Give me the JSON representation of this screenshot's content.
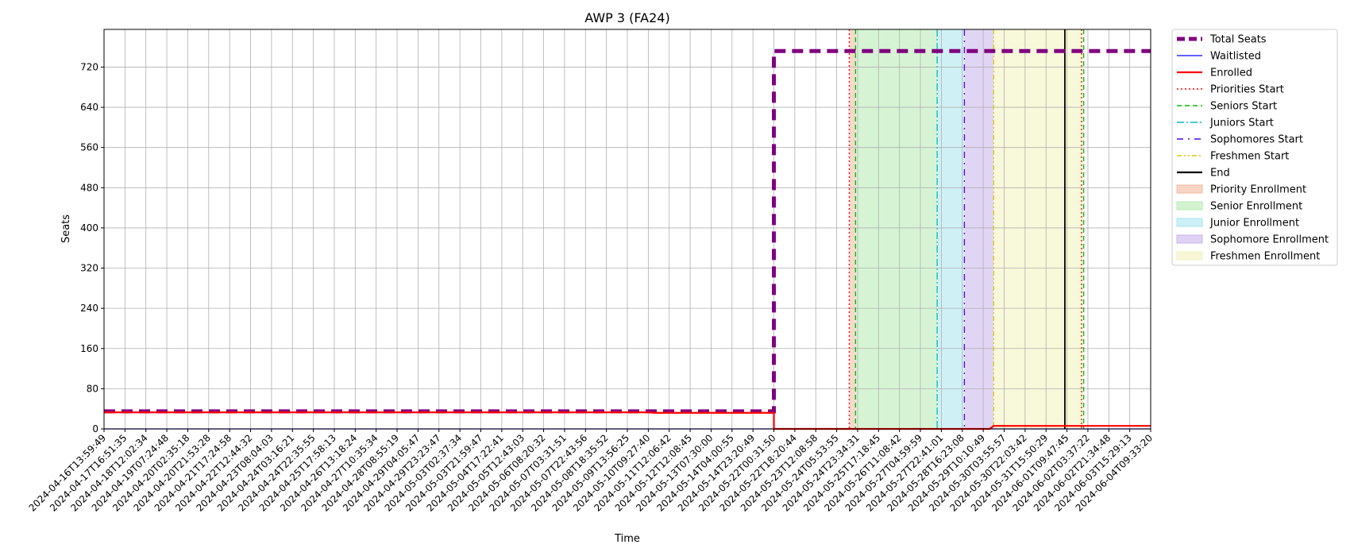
{
  "chart_data": {
    "type": "line",
    "title": "AWP 3 (FA24)",
    "xlabel": "Time",
    "ylabel": "Seats",
    "ylim": [
      0,
      795
    ],
    "yticks": [
      0,
      80,
      160,
      240,
      320,
      400,
      480,
      560,
      640,
      720
    ],
    "grid": true,
    "legend_position": "outside-right",
    "x_tick_labels": [
      "2024-04-16T13:59:49",
      "2024-04-17T16:51:35",
      "2024-04-18T12:02:34",
      "2024-04-19T07:24:48",
      "2024-04-20T02:35:18",
      "2024-04-20T21:53:28",
      "2024-04-21T17:24:58",
      "2024-04-22T12:44:32",
      "2024-04-23T08:04:03",
      "2024-04-24T03:16:21",
      "2024-04-24T22:35:55",
      "2024-04-25T17:58:13",
      "2024-04-26T13:18:24",
      "2024-04-27T10:35:34",
      "2024-04-28T08:55:19",
      "2024-04-29T04:05:47",
      "2024-04-29T23:23:47",
      "2024-05-03T02:37:34",
      "2024-05-03T21:59:47",
      "2024-05-04T17:22:41",
      "2024-05-05T12:43:03",
      "2024-05-06T08:20:32",
      "2024-05-07T03:31:51",
      "2024-05-07T22:43:56",
      "2024-05-08T18:35:52",
      "2024-05-09T13:56:25",
      "2024-05-10T09:27:40",
      "2024-05-11T12:06:42",
      "2024-05-12T12:08:45",
      "2024-05-13T07:30:00",
      "2024-05-14T04:00:55",
      "2024-05-14T23:20:49",
      "2024-05-22T00:31:50",
      "2024-05-22T18:20:44",
      "2024-05-23T12:08:58",
      "2024-05-24T05:53:55",
      "2024-05-24T23:34:31",
      "2024-05-25T17:18:45",
      "2024-05-26T11:08:42",
      "2024-05-27T04:59:59",
      "2024-05-27T22:41:01",
      "2024-05-28T16:23:08",
      "2024-05-29T10:10:49",
      "2024-05-30T03:55:57",
      "2024-05-30T22:03:42",
      "2024-05-31T15:50:29",
      "2024-06-01T09:47:45",
      "2024-06-02T03:37:22",
      "2024-06-02T21:34:48",
      "2024-06-03T15:29:13",
      "2024-06-04T09:33:20"
    ],
    "series": [
      {
        "name": "Total Seats",
        "color": "#800080",
        "style": "dashed-thick",
        "points": [
          [
            0,
            35
          ],
          [
            32,
            35
          ],
          [
            32,
            752
          ],
          [
            50,
            752
          ]
        ]
      },
      {
        "name": "Waitlisted",
        "color": "#0000ff",
        "style": "solid-thin",
        "points": [
          [
            0,
            0
          ],
          [
            50,
            0
          ]
        ]
      },
      {
        "name": "Enrolled",
        "color": "#ff0000",
        "style": "solid",
        "points": [
          [
            0,
            33
          ],
          [
            26,
            33
          ],
          [
            26.3,
            32
          ],
          [
            32,
            32
          ],
          [
            32,
            0
          ],
          [
            42.3,
            0
          ],
          [
            42.5,
            6
          ],
          [
            50,
            6
          ]
        ]
      }
    ],
    "markers": [
      {
        "name": "Priorities Start",
        "x": 35.6,
        "color": "#ff0000",
        "style": "dotted"
      },
      {
        "name": "Seniors Start",
        "x": 35.9,
        "color": "#00bb00",
        "style": "dashed"
      },
      {
        "name": "Juniors Start",
        "x": 39.8,
        "color": "#00bfbf",
        "style": "dashdot"
      },
      {
        "name": "Sophomores Start",
        "x": 41.1,
        "color": "#5500ee",
        "style": "loosedashdot"
      },
      {
        "name": "Freshmen Start",
        "x": 42.5,
        "color": "#e0c800",
        "style": "dashdotdot"
      },
      {
        "name": "End",
        "x": 45.9,
        "color": "#000000",
        "style": "solid"
      },
      {
        "name": "Priorities End",
        "x": 46.7,
        "color": "#ff0000",
        "style": "dotted"
      },
      {
        "name": "Seniors End",
        "x": 46.8,
        "color": "#00bb00",
        "style": "dashed"
      }
    ],
    "periods": [
      {
        "name": "Priority Enrollment",
        "from": 35.6,
        "to": 35.9,
        "color": "#f4b8a0"
      },
      {
        "name": "Senior Enrollment",
        "from": 35.9,
        "to": 39.8,
        "color": "#b5ebb0"
      },
      {
        "name": "Junior Enrollment",
        "from": 39.8,
        "to": 41.1,
        "color": "#a8e6ef"
      },
      {
        "name": "Sophomore Enrollment",
        "from": 41.1,
        "to": 42.5,
        "color": "#c9b3ec"
      },
      {
        "name": "Freshmen Enrollment",
        "from": 42.5,
        "to": 46.8,
        "color": "#f2f2bc"
      }
    ],
    "legend": [
      {
        "label": "Total Seats",
        "kind": "line",
        "color": "#800080",
        "style": "dashed-thick"
      },
      {
        "label": "Waitlisted",
        "kind": "line",
        "color": "#0000ff",
        "style": "solid-thin"
      },
      {
        "label": "Enrolled",
        "kind": "line",
        "color": "#ff0000",
        "style": "solid"
      },
      {
        "label": "Priorities Start",
        "kind": "line",
        "color": "#ff0000",
        "style": "dotted"
      },
      {
        "label": "Seniors Start",
        "kind": "line",
        "color": "#00bb00",
        "style": "dashed"
      },
      {
        "label": "Juniors Start",
        "kind": "line",
        "color": "#00bfbf",
        "style": "dashdot"
      },
      {
        "label": "Sophomores Start",
        "kind": "line",
        "color": "#5500ee",
        "style": "loosedashdot"
      },
      {
        "label": "Freshmen Start",
        "kind": "line",
        "color": "#e0c800",
        "style": "dashdotdot"
      },
      {
        "label": "End",
        "kind": "line",
        "color": "#000000",
        "style": "solid"
      },
      {
        "label": "Priority Enrollment",
        "kind": "patch",
        "color": "#f4b8a0"
      },
      {
        "label": "Senior Enrollment",
        "kind": "patch",
        "color": "#b5ebb0"
      },
      {
        "label": "Junior Enrollment",
        "kind": "patch",
        "color": "#a8e6ef"
      },
      {
        "label": "Sophomore Enrollment",
        "kind": "patch",
        "color": "#c9b3ec"
      },
      {
        "label": "Freshmen Enrollment",
        "kind": "patch",
        "color": "#f2f2bc"
      }
    ]
  }
}
